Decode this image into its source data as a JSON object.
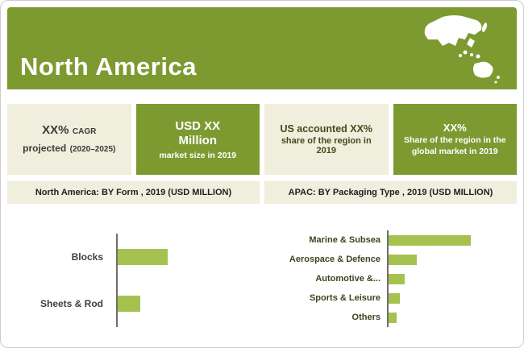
{
  "banner": {
    "title": "North America"
  },
  "colors": {
    "banner_green": "#7d9a31",
    "box_beige": "#f0eedd",
    "bar_fill": "#a5c24f",
    "axis_gray": "#6e6e6e"
  },
  "stats": {
    "box1": {
      "value": "XX%",
      "value_suffix": "CAGR",
      "desc": "projected",
      "desc_suffix": "(2020–2025)"
    },
    "box2": {
      "line1": "USD XX",
      "line2": "Million",
      "desc": "market size in 2019"
    },
    "box3": {
      "line1": "US accounted XX%",
      "desc": "share of the region in 2019"
    },
    "box4": {
      "line1": "XX%",
      "desc": "Share of the region in the global market in 2019"
    }
  },
  "chart_data": [
    {
      "type": "bar",
      "orientation": "horizontal",
      "title": "North America: BY Form , 2019 (USD MILLION)",
      "categories": [
        "Blocks",
        "Sheets & Rod"
      ],
      "values": [
        62,
        28
      ],
      "value_units": "relative (no axis labels shown)",
      "xlim": [
        0,
        170
      ],
      "grid": false,
      "legend": false,
      "bar_color": "#a5c24f"
    },
    {
      "type": "bar",
      "orientation": "horizontal",
      "title": "APAC: BY Packaging Type , 2019 (USD MILLION)",
      "categories": [
        "Marine & Subsea",
        "Aerospace & Defence",
        "Automotive &...",
        "Sports & Leisure",
        "Others"
      ],
      "values": [
        102,
        35,
        20,
        14,
        10
      ],
      "value_units": "relative (no axis labels shown)",
      "xlim": [
        0,
        160
      ],
      "grid": false,
      "legend": false,
      "bar_color": "#a5c24f"
    }
  ]
}
